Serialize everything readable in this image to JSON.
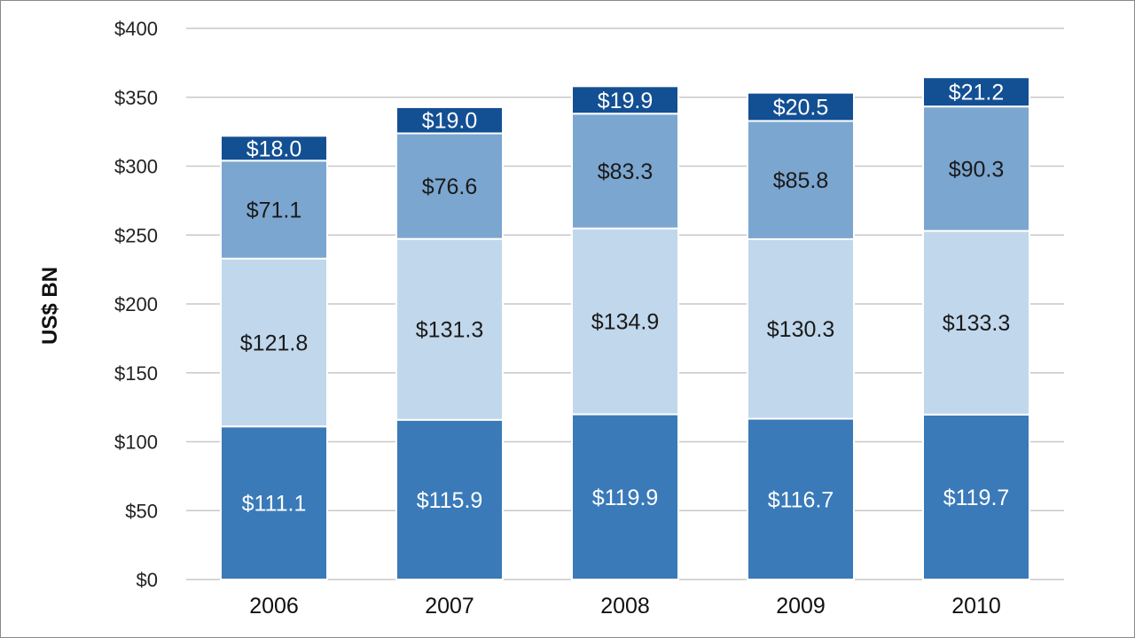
{
  "chart_data": {
    "type": "bar",
    "stacked": true,
    "ylabel": "US$ BN",
    "xlabel": "",
    "title": "",
    "ylim": [
      0,
      400
    ],
    "y_ticks": [
      0,
      50,
      100,
      150,
      200,
      250,
      300,
      350,
      400
    ],
    "y_tick_labels": [
      "$0",
      "$50",
      "$100",
      "$150",
      "$200",
      "$250",
      "$300",
      "$350",
      "$400"
    ],
    "grid": true,
    "legend": "none",
    "categories": [
      "2006",
      "2007",
      "2008",
      "2009",
      "2010"
    ],
    "series": [
      {
        "values": [
          111.1,
          115.9,
          119.9,
          116.7,
          119.7
        ],
        "labels": [
          "$111.1",
          "$115.9",
          "$119.9",
          "$116.7",
          "$119.7"
        ],
        "color": "#3a7ab8",
        "label_color": "#ffffff"
      },
      {
        "values": [
          121.8,
          131.3,
          134.9,
          130.3,
          133.3
        ],
        "labels": [
          "$121.8",
          "$131.3",
          "$134.9",
          "$130.3",
          "$133.3"
        ],
        "color": "#c1d7ec",
        "label_color": "#1a1a1a"
      },
      {
        "values": [
          71.1,
          76.6,
          83.3,
          85.8,
          90.3
        ],
        "labels": [
          "$71.1",
          "$76.6",
          "$83.3",
          "$85.8",
          "$90.3"
        ],
        "color": "#7ba6d0",
        "label_color": "#1a1a1a"
      },
      {
        "values": [
          18.0,
          19.0,
          19.9,
          20.5,
          21.2
        ],
        "labels": [
          "$18.0",
          "$19.0",
          "$19.9",
          "$20.5",
          "$21.2"
        ],
        "color": "#134f93",
        "label_color": "#ffffff"
      }
    ]
  }
}
